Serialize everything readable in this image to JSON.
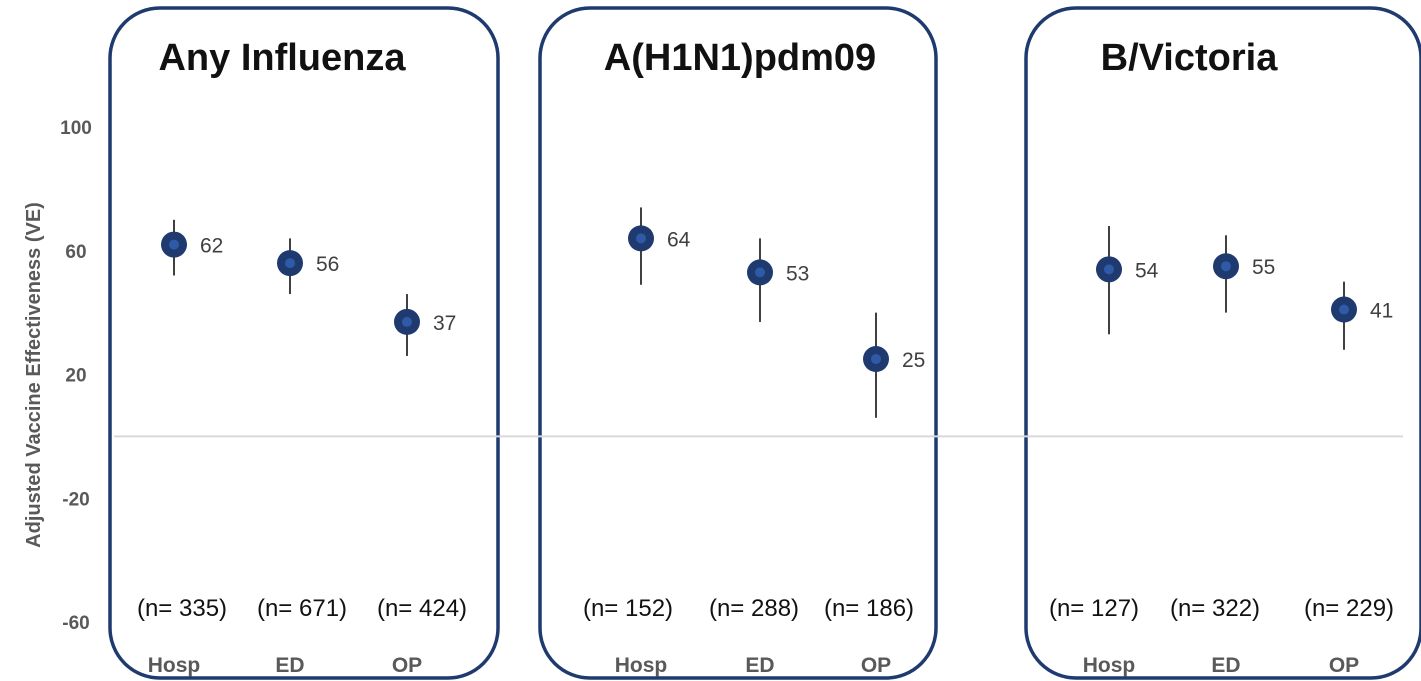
{
  "chart_data": {
    "type": "scatter",
    "ylabel": "Adjusted Vaccine Effectiveness (VE)",
    "ylim": [
      -60,
      100
    ],
    "yticks": [
      "100",
      "60",
      "20",
      "-20",
      "-60"
    ],
    "reference_line": 0,
    "categories": [
      "Hosp",
      "ED",
      "OP"
    ],
    "colors": {
      "marker": "#1f3a6e",
      "marker_center": "#2e5aa8",
      "panel_border": "#1f3a6e",
      "zero_line": "#d9d9d9",
      "errorbar": "#404040"
    },
    "panels": [
      {
        "title": "Any Influenza",
        "points": [
          {
            "category": "Hosp",
            "ve": 62,
            "label": "62",
            "lower": 52,
            "upper": 70,
            "n": "(n= 335)"
          },
          {
            "category": "ED",
            "ve": 56,
            "label": "56",
            "lower": 46,
            "upper": 64,
            "n": "(n= 671)"
          },
          {
            "category": "OP",
            "ve": 37,
            "label": "37",
            "lower": 26,
            "upper": 46,
            "n": "(n= 424)"
          }
        ]
      },
      {
        "title": "A(H1N1)pdm09",
        "points": [
          {
            "category": "Hosp",
            "ve": 64,
            "label": "64",
            "lower": 49,
            "upper": 74,
            "n": "(n= 152)"
          },
          {
            "category": "ED",
            "ve": 53,
            "label": "53",
            "lower": 37,
            "upper": 64,
            "n": "(n= 288)"
          },
          {
            "category": "OP",
            "ve": 25,
            "label": "25",
            "lower": 6,
            "upper": 40,
            "n": "(n= 186)"
          }
        ]
      },
      {
        "title": "B/Victoria",
        "points": [
          {
            "category": "Hosp",
            "ve": 54,
            "label": "54",
            "lower": 33,
            "upper": 68,
            "n": "(n= 127)"
          },
          {
            "category": "ED",
            "ve": 55,
            "label": "55",
            "lower": 40,
            "upper": 65,
            "n": "(n= 322)"
          },
          {
            "category": "OP",
            "ve": 41,
            "label": "41",
            "lower": 28,
            "upper": 50,
            "n": "(n= 229)"
          }
        ]
      }
    ]
  }
}
